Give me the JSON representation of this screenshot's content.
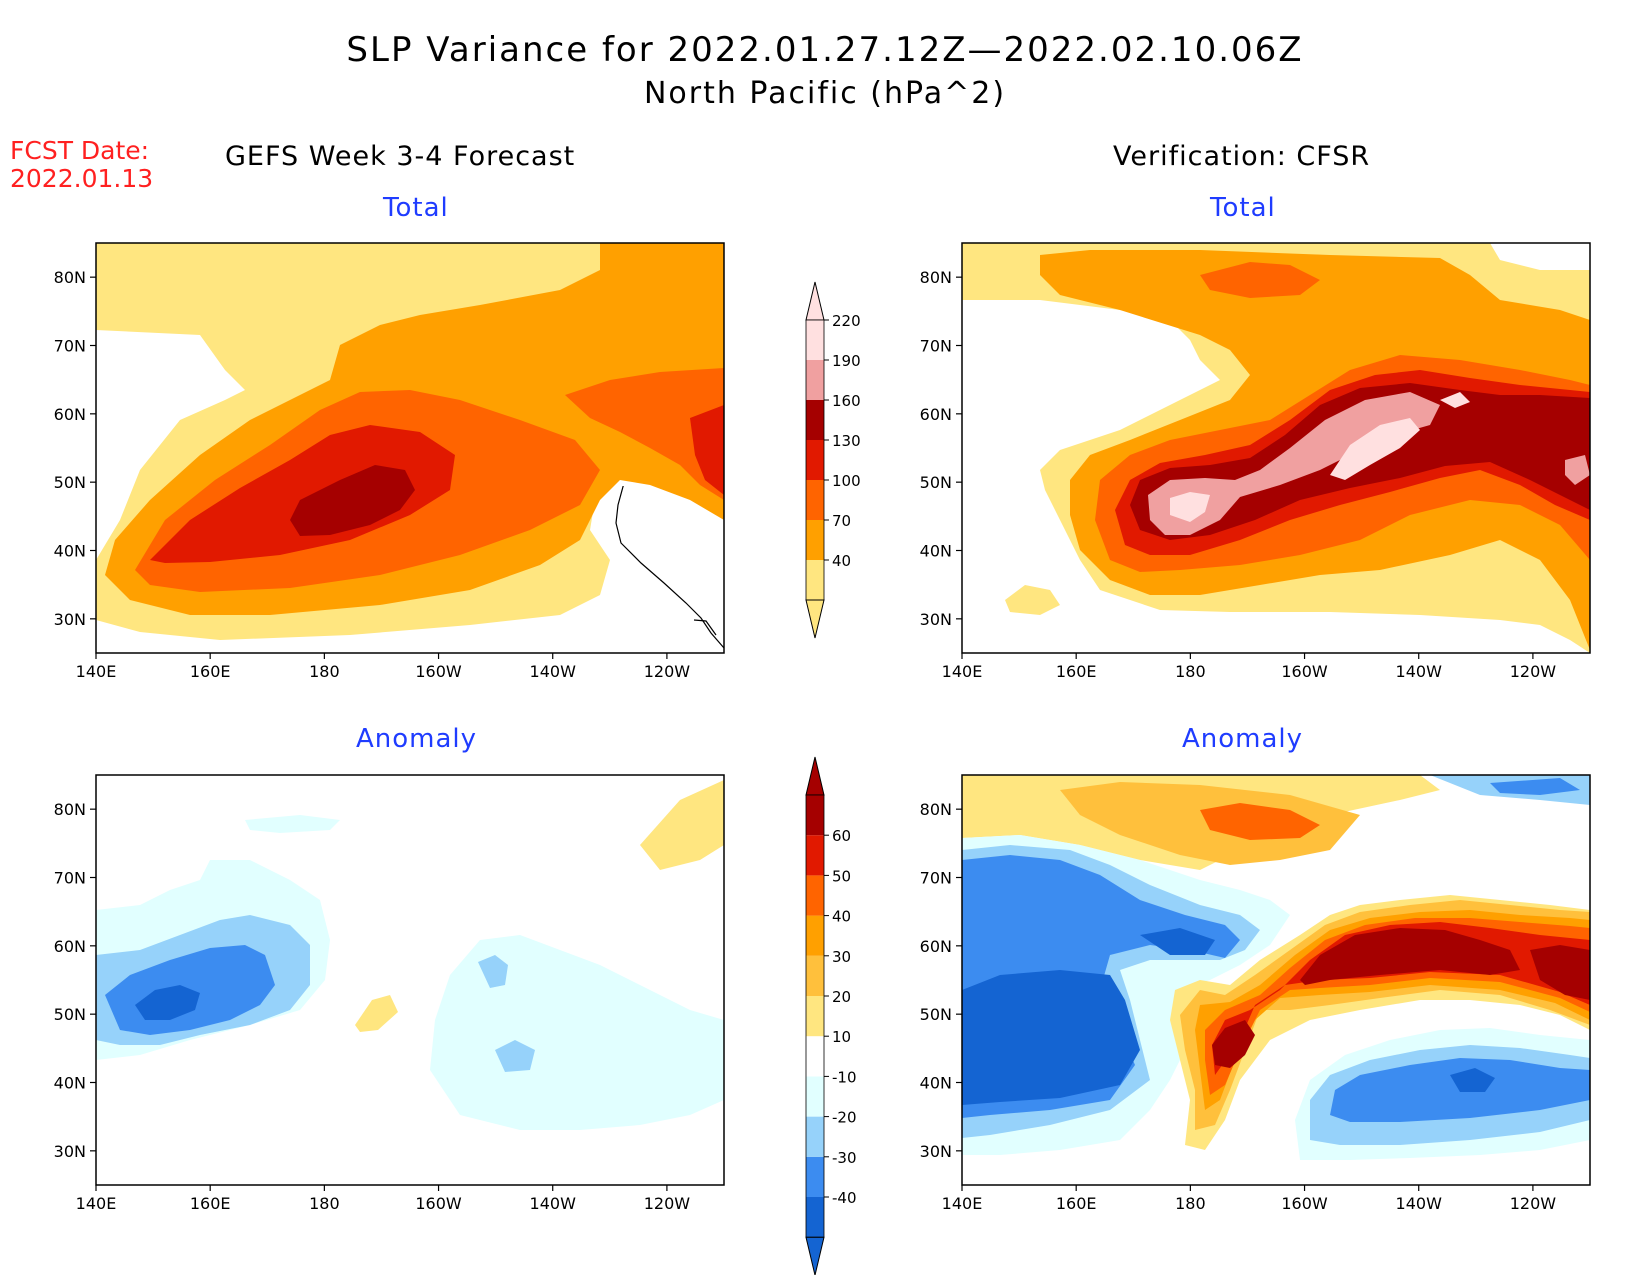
{
  "header": {
    "title": "SLP Variance for 2022.01.27.12Z—2022.02.10.06Z",
    "subtitle": "North Pacific (hPa^2)",
    "fcst_label": "FCST Date:",
    "fcst_date": "2022.01.13"
  },
  "columns": {
    "left": "GEFS Week 3-4 Forecast",
    "right": "Verification: CFSR"
  },
  "panels": {
    "top_left": "Total",
    "top_right": "Total",
    "bottom_left": "Anomaly",
    "bottom_right": "Anomaly"
  },
  "axes": {
    "x_ticks": [
      "140E",
      "160E",
      "180",
      "160W",
      "140W",
      "120W"
    ],
    "y_ticks": [
      "30N",
      "40N",
      "50N",
      "60N",
      "70N",
      "80N"
    ],
    "lon_range_deg_east": [
      140,
      250
    ],
    "lat_range": [
      25,
      85
    ]
  },
  "colorbars": {
    "total": {
      "labels": [
        "40",
        "70",
        "100",
        "130",
        "160",
        "190",
        "220"
      ],
      "colors": [
        "#ffe680",
        "#ffa000",
        "#ff6400",
        "#e11900",
        "#a50000",
        "#f0a0a0",
        "#ffe0e0"
      ]
    },
    "anomaly": {
      "labels": [
        "-40",
        "-30",
        "-20",
        "-10",
        "10",
        "20",
        "30",
        "40",
        "50",
        "60"
      ],
      "colors": [
        "#1464d2",
        "#3c8cf0",
        "#96d2fa",
        "#e1ffff",
        "#ffffff",
        "#ffe680",
        "#ffc03c",
        "#ffa000",
        "#ff6400",
        "#e11900",
        "#a50000"
      ]
    }
  }
}
